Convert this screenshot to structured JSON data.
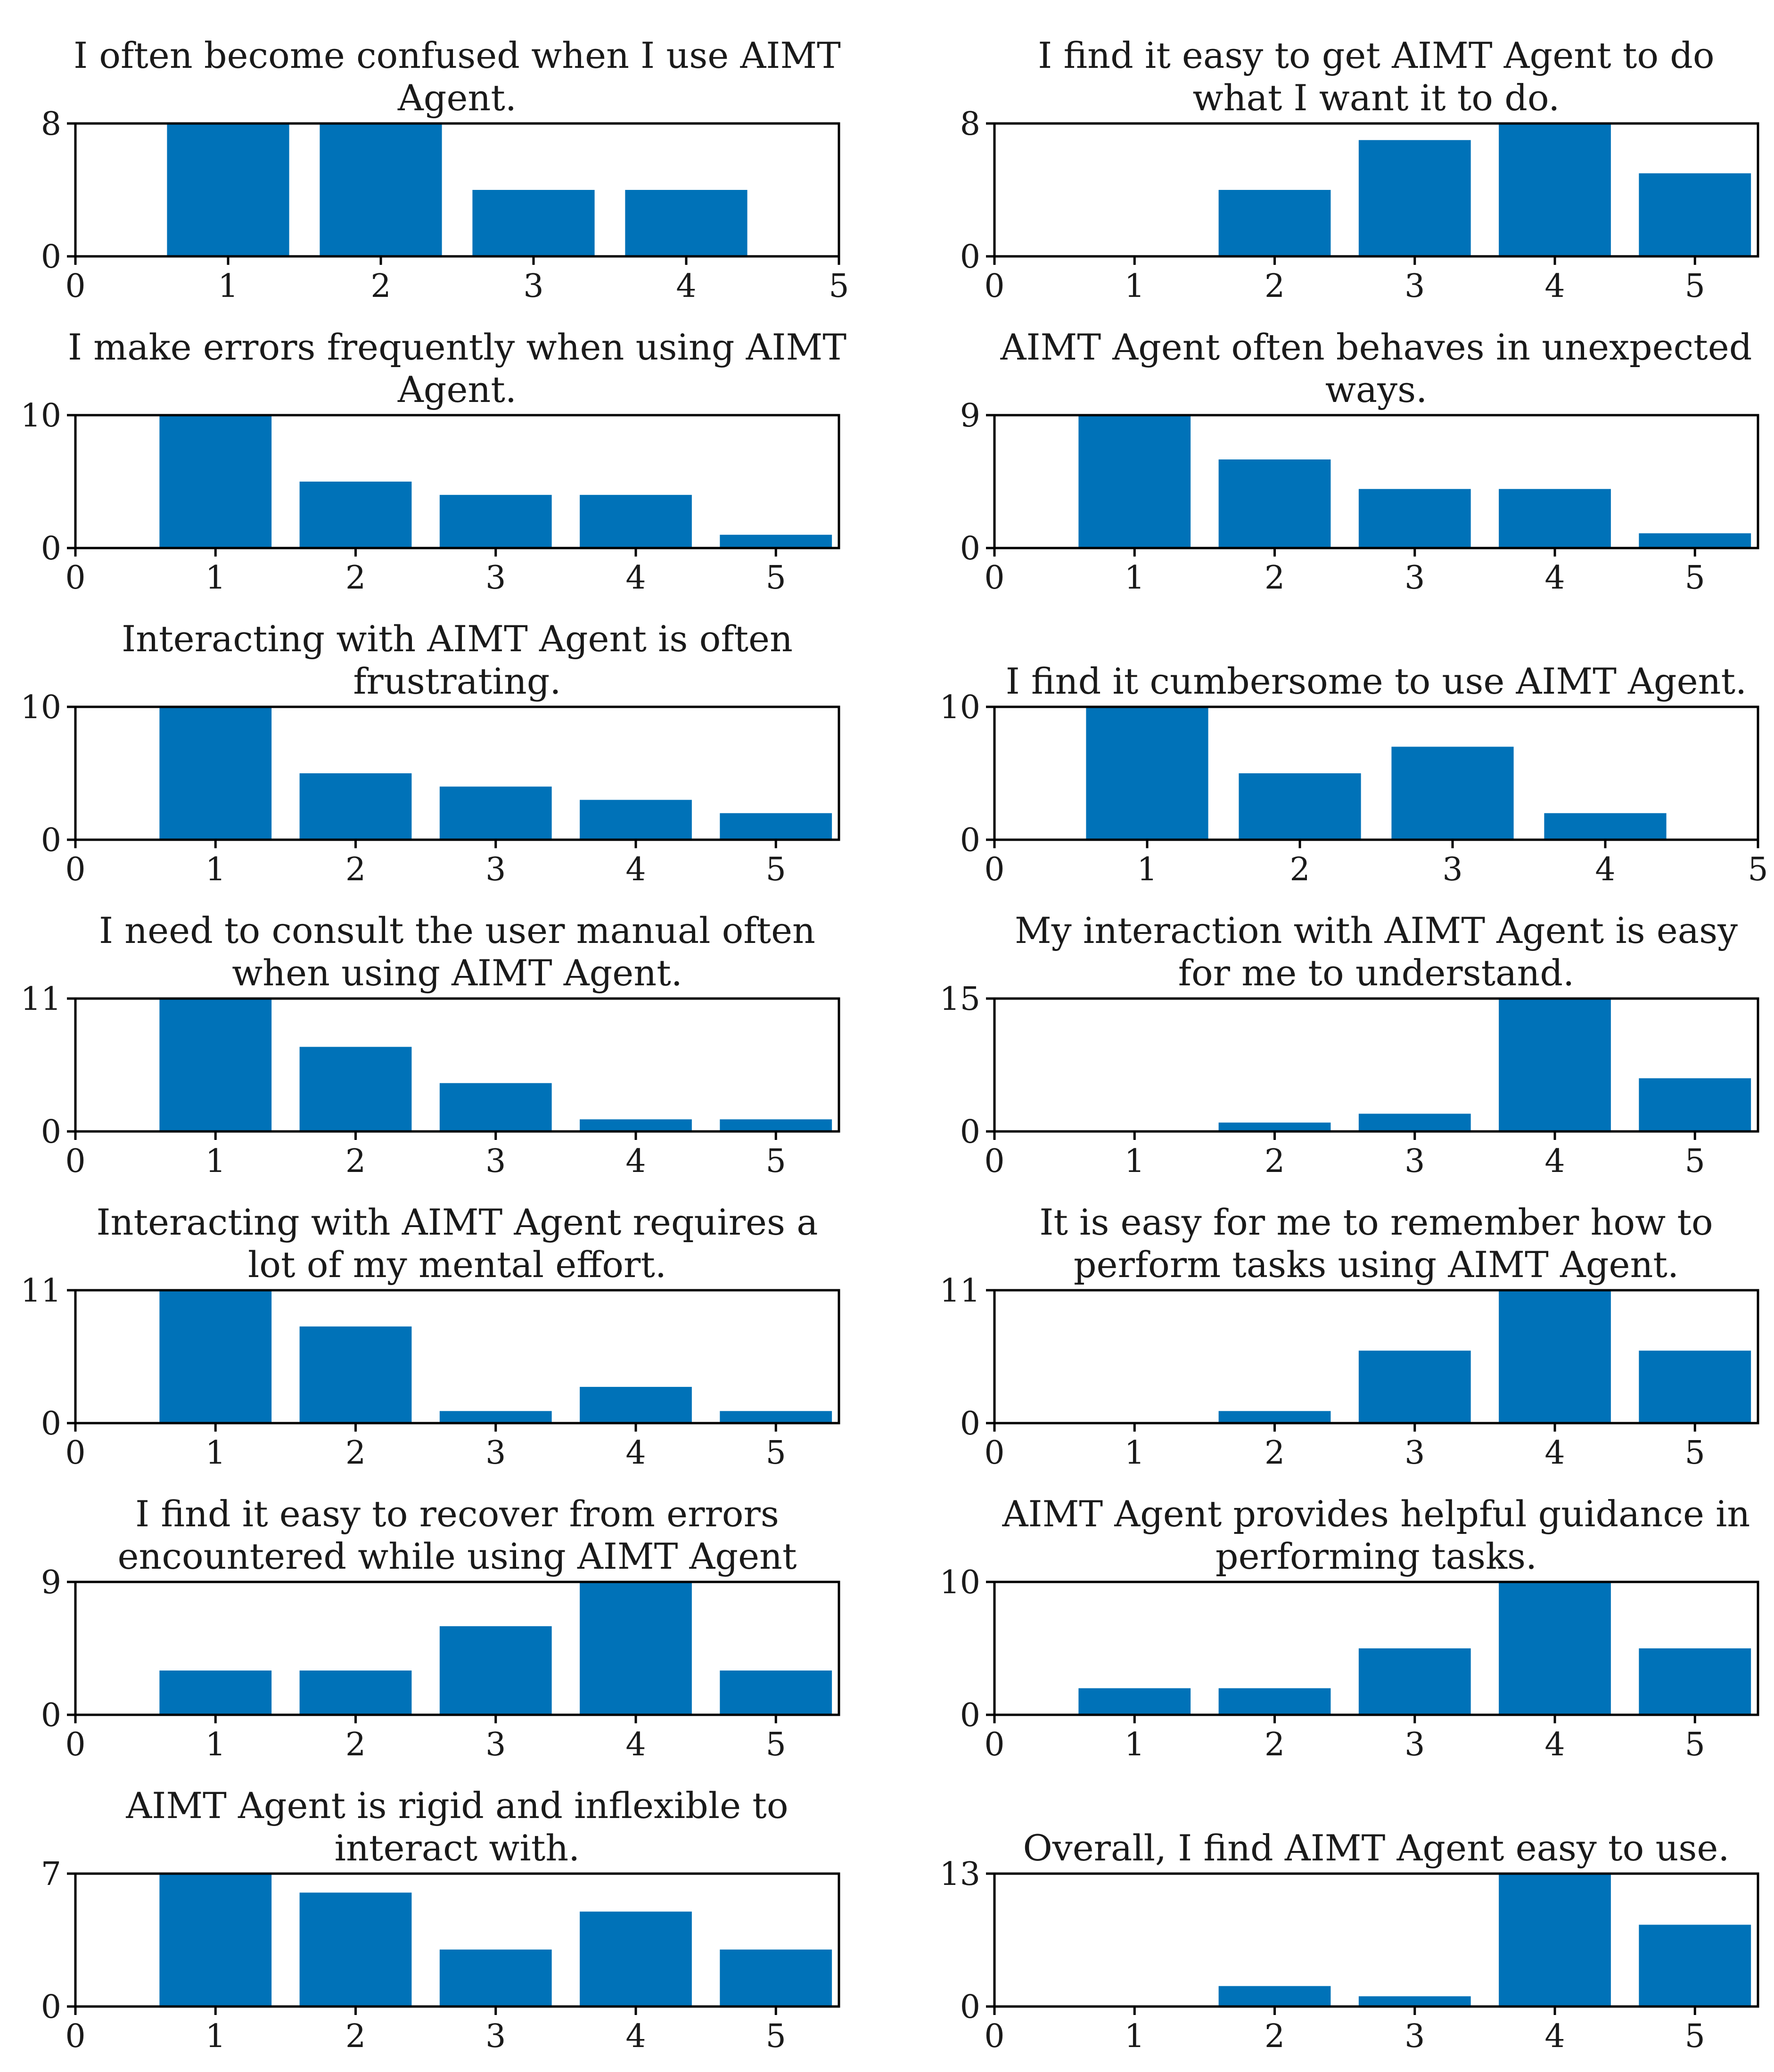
{
  "figure": {
    "bar_color": "#0072b8",
    "axis_color": "#000000",
    "text_color": "#1a1a1a"
  },
  "chart_data": [
    {
      "type": "bar",
      "title": [
        "I often become confused when I use AIMT",
        "Agent."
      ],
      "categories": [
        1,
        2,
        3,
        4,
        5
      ],
      "values": [
        8,
        8,
        4,
        4,
        0
      ],
      "xlim": [
        0,
        5
      ],
      "xticks": [
        "0",
        "1",
        "2",
        "3",
        "4",
        "5"
      ],
      "ylim": [
        0,
        8
      ],
      "yticks": [
        "0",
        "8"
      ],
      "xlabel": "",
      "ylabel": ""
    },
    {
      "type": "bar",
      "title": [
        "I find it easy to get AIMT Agent to do",
        "what I want it to do."
      ],
      "categories": [
        1,
        2,
        3,
        4,
        5
      ],
      "values": [
        0,
        4,
        7,
        8,
        5
      ],
      "xlim": [
        0,
        5.45
      ],
      "xticks": [
        "0",
        "1",
        "2",
        "3",
        "4",
        "5"
      ],
      "ylim": [
        0,
        8
      ],
      "yticks": [
        "0",
        "8"
      ],
      "xlabel": "",
      "ylabel": ""
    },
    {
      "type": "bar",
      "title": [
        "I make errors frequently when using AIMT",
        "Agent."
      ],
      "categories": [
        1,
        2,
        3,
        4,
        5
      ],
      "values": [
        10,
        5,
        4,
        4,
        1
      ],
      "xlim": [
        0,
        5.45
      ],
      "xticks": [
        "0",
        "1",
        "2",
        "3",
        "4",
        "5"
      ],
      "ylim": [
        0,
        10
      ],
      "yticks": [
        "0",
        "10"
      ],
      "xlabel": "",
      "ylabel": ""
    },
    {
      "type": "bar",
      "title": [
        "AIMT Agent often behaves in unexpected",
        "ways."
      ],
      "categories": [
        1,
        2,
        3,
        4,
        5
      ],
      "values": [
        9,
        6,
        4,
        4,
        1
      ],
      "xlim": [
        0,
        5.45
      ],
      "xticks": [
        "0",
        "1",
        "2",
        "3",
        "4",
        "5"
      ],
      "ylim": [
        0,
        9
      ],
      "yticks": [
        "0",
        "9"
      ],
      "xlabel": "",
      "ylabel": ""
    },
    {
      "type": "bar",
      "title": [
        "Interacting with AIMT Agent is often",
        "frustrating."
      ],
      "categories": [
        1,
        2,
        3,
        4,
        5
      ],
      "values": [
        10,
        5,
        4,
        3,
        2
      ],
      "xlim": [
        0,
        5.45
      ],
      "xticks": [
        "0",
        "1",
        "2",
        "3",
        "4",
        "5"
      ],
      "ylim": [
        0,
        10
      ],
      "yticks": [
        "0",
        "10"
      ],
      "xlabel": "",
      "ylabel": ""
    },
    {
      "type": "bar",
      "title": [
        "I find it cumbersome to use AIMT Agent."
      ],
      "categories": [
        1,
        2,
        3,
        4,
        5
      ],
      "values": [
        10,
        5,
        7,
        2,
        0
      ],
      "xlim": [
        0,
        5
      ],
      "xticks": [
        "0",
        "1",
        "2",
        "3",
        "4",
        "5"
      ],
      "ylim": [
        0,
        10
      ],
      "yticks": [
        "0",
        "10"
      ],
      "xlabel": "",
      "ylabel": ""
    },
    {
      "type": "bar",
      "title": [
        "I need to consult the user manual often",
        "when using AIMT Agent."
      ],
      "categories": [
        1,
        2,
        3,
        4,
        5
      ],
      "values": [
        11,
        7,
        4,
        1,
        1
      ],
      "xlim": [
        0,
        5.45
      ],
      "xticks": [
        "0",
        "1",
        "2",
        "3",
        "4",
        "5"
      ],
      "ylim": [
        0,
        11
      ],
      "yticks": [
        "0",
        "11"
      ],
      "xlabel": "",
      "ylabel": ""
    },
    {
      "type": "bar",
      "title": [
        "My interaction with AIMT Agent is easy",
        "for me to understand."
      ],
      "categories": [
        1,
        2,
        3,
        4,
        5
      ],
      "values": [
        0,
        1,
        2,
        15,
        6
      ],
      "xlim": [
        0,
        5.45
      ],
      "xticks": [
        "0",
        "1",
        "2",
        "3",
        "4",
        "5"
      ],
      "ylim": [
        0,
        15
      ],
      "yticks": [
        "0",
        "15"
      ],
      "xlabel": "",
      "ylabel": ""
    },
    {
      "type": "bar",
      "title": [
        "Interacting with AIMT Agent requires a",
        "lot of my mental effort."
      ],
      "categories": [
        1,
        2,
        3,
        4,
        5
      ],
      "values": [
        11,
        8,
        1,
        3,
        1
      ],
      "xlim": [
        0,
        5.45
      ],
      "xticks": [
        "0",
        "1",
        "2",
        "3",
        "4",
        "5"
      ],
      "ylim": [
        0,
        11
      ],
      "yticks": [
        "0",
        "11"
      ],
      "xlabel": "",
      "ylabel": ""
    },
    {
      "type": "bar",
      "title": [
        "It is easy for me to remember how to",
        "perform tasks using AIMT Agent."
      ],
      "categories": [
        1,
        2,
        3,
        4,
        5
      ],
      "values": [
        0,
        1,
        6,
        11,
        6
      ],
      "xlim": [
        0,
        5.45
      ],
      "xticks": [
        "0",
        "1",
        "2",
        "3",
        "4",
        "5"
      ],
      "ylim": [
        0,
        11
      ],
      "yticks": [
        "0",
        "11"
      ],
      "xlabel": "",
      "ylabel": ""
    },
    {
      "type": "bar",
      "title": [
        "I find it easy to recover from errors",
        "encountered while using AIMT Agent"
      ],
      "categories": [
        1,
        2,
        3,
        4,
        5
      ],
      "values": [
        3,
        3,
        6,
        9,
        3
      ],
      "xlim": [
        0,
        5.45
      ],
      "xticks": [
        "0",
        "1",
        "2",
        "3",
        "4",
        "5"
      ],
      "ylim": [
        0,
        9
      ],
      "yticks": [
        "0",
        "9"
      ],
      "xlabel": "",
      "ylabel": ""
    },
    {
      "type": "bar",
      "title": [
        "AIMT Agent provides helpful guidance in",
        "performing tasks."
      ],
      "categories": [
        1,
        2,
        3,
        4,
        5
      ],
      "values": [
        2,
        2,
        5,
        10,
        5
      ],
      "xlim": [
        0,
        5.45
      ],
      "xticks": [
        "0",
        "1",
        "2",
        "3",
        "4",
        "5"
      ],
      "ylim": [
        0,
        10
      ],
      "yticks": [
        "0",
        "10"
      ],
      "xlabel": "",
      "ylabel": ""
    },
    {
      "type": "bar",
      "title": [
        "AIMT Agent is rigid and inflexible to",
        "interact with."
      ],
      "categories": [
        1,
        2,
        3,
        4,
        5
      ],
      "values": [
        7,
        6,
        3,
        5,
        3
      ],
      "xlim": [
        0,
        5.45
      ],
      "xticks": [
        "0",
        "1",
        "2",
        "3",
        "4",
        "5"
      ],
      "ylim": [
        0,
        7
      ],
      "yticks": [
        "0",
        "7"
      ],
      "xlabel": "",
      "ylabel": ""
    },
    {
      "type": "bar",
      "title": [
        "Overall, I find AIMT Agent easy to use."
      ],
      "categories": [
        1,
        2,
        3,
        4,
        5
      ],
      "values": [
        0,
        2,
        1,
        13,
        8
      ],
      "xlim": [
        0,
        5.45
      ],
      "xticks": [
        "0",
        "1",
        "2",
        "3",
        "4",
        "5"
      ],
      "ylim": [
        0,
        13
      ],
      "yticks": [
        "0",
        "13"
      ],
      "xlabel": "",
      "ylabel": ""
    }
  ]
}
